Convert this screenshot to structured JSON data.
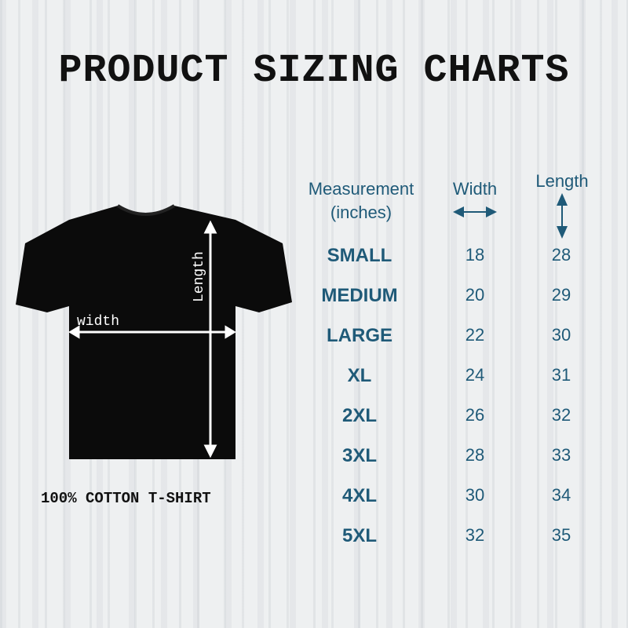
{
  "title": "PRODUCT SIZING CHARTS",
  "caption": "100% COTTON T-SHIRT",
  "shirt_labels": {
    "width": "width",
    "length": "Length"
  },
  "accent_color": "#1f5a78",
  "table": {
    "headers": {
      "measurement": "Measurement",
      "unit": "(inches)",
      "width": "Width",
      "length": "Length"
    },
    "rows": [
      {
        "size": "SMALL",
        "width": "18",
        "length": "28"
      },
      {
        "size": "MEDIUM",
        "width": "20",
        "length": "29"
      },
      {
        "size": "LARGE",
        "width": "22",
        "length": "30"
      },
      {
        "size": "XL",
        "width": "24",
        "length": "31"
      },
      {
        "size": "2XL",
        "width": "26",
        "length": "32"
      },
      {
        "size": "3XL",
        "width": "28",
        "length": "33"
      },
      {
        "size": "4XL",
        "width": "30",
        "length": "34"
      },
      {
        "size": "5XL",
        "width": "32",
        "length": "35"
      }
    ]
  }
}
